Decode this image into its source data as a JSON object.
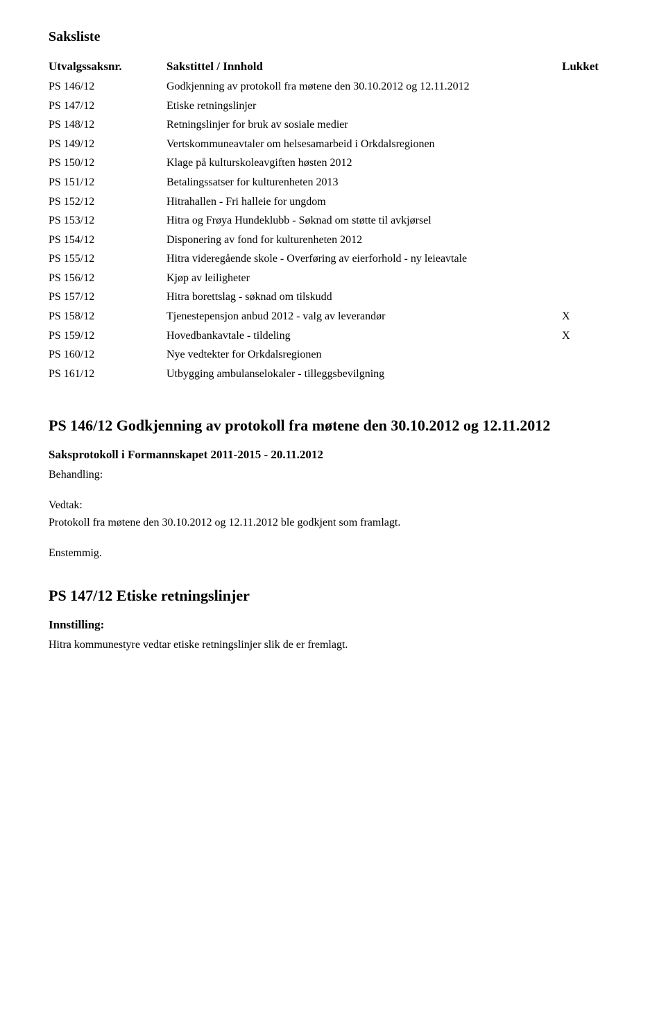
{
  "colors": {
    "background": "#ffffff",
    "text": "#000000"
  },
  "typography": {
    "base_family": "Times New Roman",
    "base_size_pt": 12,
    "heading_size_pt": 16
  },
  "saksliste": {
    "h_title": "Saksliste",
    "header": {
      "saksnr": "Utvalgssaksnr.",
      "title": "Sakstittel / Innhold",
      "lukket": "Lukket"
    },
    "rows": [
      {
        "saksnr": "PS 146/12",
        "title": "Godkjenning av protokoll fra møtene den 30.10.2012 og 12.11.2012",
        "lukket": ""
      },
      {
        "saksnr": "PS 147/12",
        "title": "Etiske retningslinjer",
        "lukket": ""
      },
      {
        "saksnr": "PS 148/12",
        "title": "Retningslinjer for bruk av sosiale medier",
        "lukket": ""
      },
      {
        "saksnr": "PS 149/12",
        "title": "Vertskommuneavtaler om helsesamarbeid i Orkdalsregionen",
        "lukket": ""
      },
      {
        "saksnr": "PS 150/12",
        "title": "Klage på kulturskoleavgiften høsten 2012",
        "lukket": ""
      },
      {
        "saksnr": "PS 151/12",
        "title": "Betalingssatser for kulturenheten 2013",
        "lukket": ""
      },
      {
        "saksnr": "PS 152/12",
        "title": "Hitrahallen - Fri halleie for ungdom",
        "lukket": ""
      },
      {
        "saksnr": "PS 153/12",
        "title": "Hitra og Frøya Hundeklubb - Søknad om støtte til avkjørsel",
        "lukket": ""
      },
      {
        "saksnr": "PS 154/12",
        "title": "Disponering av fond for kulturenheten 2012",
        "lukket": ""
      },
      {
        "saksnr": "PS 155/12",
        "title": "Hitra videregående skole - Overføring av eierforhold - ny leieavtale",
        "lukket": ""
      },
      {
        "saksnr": "PS 156/12",
        "title": "Kjøp av leiligheter",
        "lukket": ""
      },
      {
        "saksnr": "PS 157/12",
        "title": "Hitra borettslag - søknad om tilskudd",
        "lukket": ""
      },
      {
        "saksnr": "PS 158/12",
        "title": "Tjenestepensjon anbud 2012 - valg av leverandør",
        "lukket": "X"
      },
      {
        "saksnr": "PS 159/12",
        "title": "Hovedbankavtale - tildeling",
        "lukket": "X"
      },
      {
        "saksnr": "PS 160/12",
        "title": "Nye vedtekter for Orkdalsregionen",
        "lukket": ""
      },
      {
        "saksnr": "PS 161/12",
        "title": "Utbygging ambulanselokaler - tilleggsbevilgning",
        "lukket": ""
      }
    ]
  },
  "section1": {
    "heading": "PS 146/12 Godkjenning av protokoll fra møtene den 30.10.2012 og 12.11.2012",
    "sub": "Saksprotokoll i Formannskapet 2011-2015 - 20.11.2012",
    "label_behandling": "Behandling:",
    "label_vedtak": "Vedtak:",
    "vedtak_body": "Protokoll fra møtene den 30.10.2012 og 12.11.2012 ble godkjent som framlagt.",
    "enstemmig": "Enstemmig."
  },
  "section2": {
    "heading": "PS 147/12 Etiske retningslinjer",
    "label_innstilling": "Innstilling:",
    "innstilling_body": "Hitra kommunestyre vedtar etiske retningslinjer slik de er fremlagt."
  }
}
